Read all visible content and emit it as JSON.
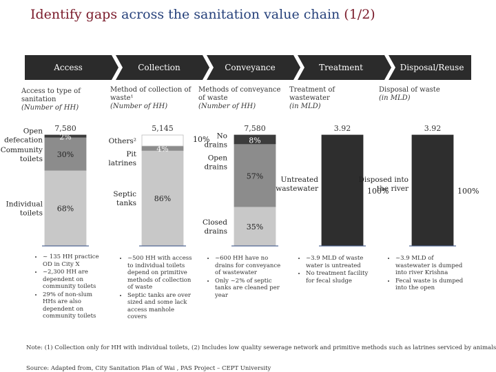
{
  "title": {
    "part1": "Identify gaps ",
    "part2": "across the sanitation value chain",
    "part3": " (1/2)"
  },
  "chevrons": [
    "Access",
    "Collection",
    "Conveyance",
    "Treatment",
    "Disposal/Reuse"
  ],
  "subtitles": [
    {
      "main": "Access to type of sanitation",
      "unit": "(Number of HH)"
    },
    {
      "main": "Method of collection of waste¹",
      "unit": "(Number of HH)"
    },
    {
      "main": "Methods of conveyance of waste",
      "unit": "(Number of HH)"
    },
    {
      "main": "Treatment of wastewater",
      "unit": "(in MLD)"
    },
    {
      "main": "Disposal of waste",
      "unit": "(in MLD)"
    }
  ],
  "chart_data": [
    {
      "type": "bar",
      "stacked": true,
      "total_label": "7,580",
      "segments": [
        {
          "name": "Individual toilets",
          "pct": 68,
          "label": "68%",
          "color": "#c8c8c8"
        },
        {
          "name": "Community toilets",
          "pct": 30,
          "label": "30%",
          "color": "#8c8c8c"
        },
        {
          "name": "Open defecation",
          "pct": 2,
          "label": "2%",
          "color": "#3c3c3c"
        }
      ]
    },
    {
      "type": "bar",
      "stacked": true,
      "total_label": "5,145",
      "segments": [
        {
          "name": "Septic tanks",
          "pct": 86,
          "label": "86%",
          "color": "#c8c8c8"
        },
        {
          "name": "Pit latrines",
          "pct": 4,
          "label": "4%",
          "color": "#8c8c8c"
        },
        {
          "name": "Others²",
          "pct": 10,
          "label": "10%",
          "color": "#ffffff"
        }
      ]
    },
    {
      "type": "bar",
      "stacked": true,
      "total_label": "7,580",
      "segments": [
        {
          "name": "Closed drains",
          "pct": 35,
          "label": "35%",
          "color": "#c8c8c8"
        },
        {
          "name": "Open drains",
          "pct": 57,
          "label": "57%",
          "color": "#8c8c8c"
        },
        {
          "name": "No drains",
          "pct": 8,
          "label": "8%",
          "color": "#3c3c3c"
        }
      ]
    },
    {
      "type": "bar",
      "stacked": true,
      "total_label": "3.92",
      "segments": [
        {
          "name": "Untreated wastewater",
          "pct": 100,
          "label": "100%",
          "color": "#2e2e2e"
        }
      ]
    },
    {
      "type": "bar",
      "stacked": true,
      "total_label": "3.92",
      "segments": [
        {
          "name": "Disposed into the river",
          "pct": 100,
          "label": "100%",
          "color": "#2e2e2e"
        }
      ]
    }
  ],
  "bullets": [
    [
      "~ 135 HH practice OD in City X",
      "~2,300 HH are dependent on community toilets",
      "29% of non-slum HHs are also dependent on community toilets"
    ],
    [
      "~500 HH with access to individual toilets depend on primitive methods of collection of waste",
      "Septic tanks are over sized and some lack access manhole covers"
    ],
    [
      "~600 HH have no drains for conveyance of wastewater",
      "Only ~2% of septic tanks are cleaned per year"
    ],
    [
      "~3.9 MLD of waste water is untreated",
      "No treatment facility for fecal sludge"
    ],
    [
      "~3.9 MLD of wastewater is dumped into river Krishna",
      "Fecal waste is dumped into the open"
    ]
  ],
  "notes": {
    "note": "Note: (1) Collection only for HH with individual toilets, (2) Includes low quality sewerage network and primitive methods such as latrines serviced by animals",
    "source": "Source: Adapted from, City Sanitation Plan of Wai , PAS Project – CEPT University"
  },
  "colors": {
    "title": "#7a1a2a",
    "title_accent": "#25407a",
    "chevron": "#2b2b2b",
    "rule": "#25407a"
  }
}
